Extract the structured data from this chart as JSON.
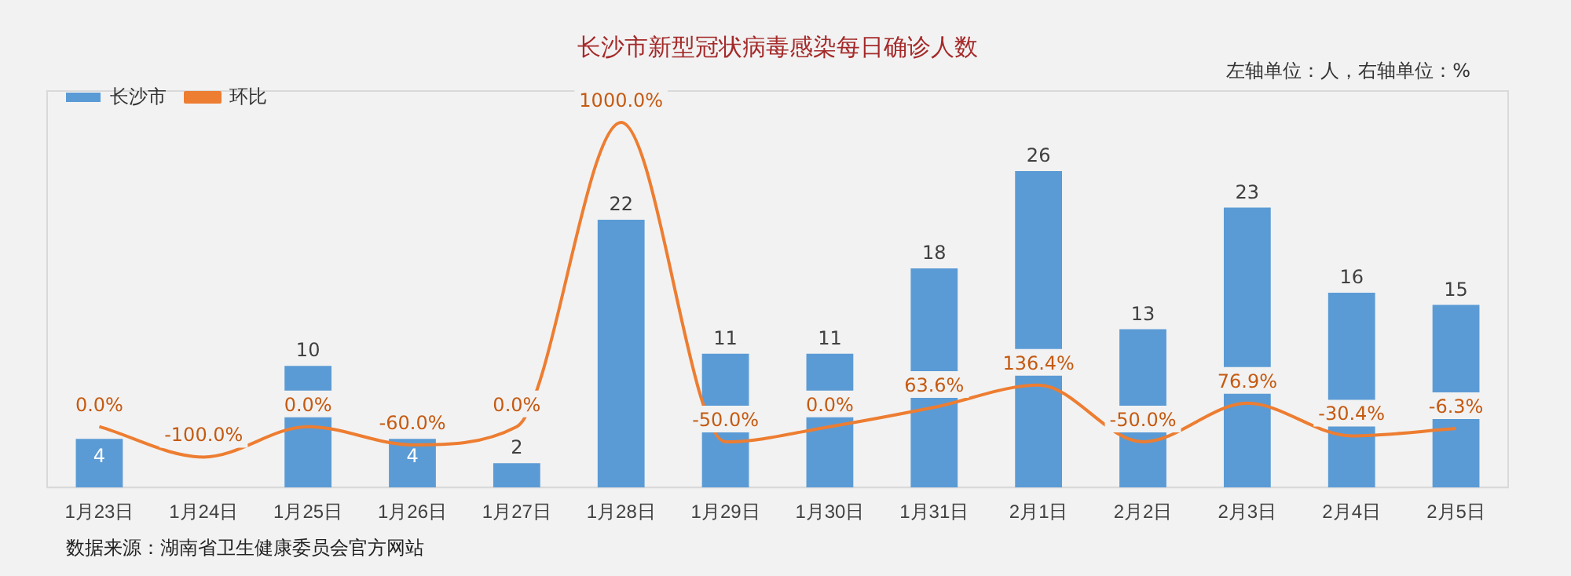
{
  "chart_data": {
    "type": "bar",
    "title": "长沙市新型冠状病毒感染每日确诊人数",
    "categories": [
      "1月23日",
      "1月24日",
      "1月25日",
      "1月26日",
      "1月27日",
      "1月28日",
      "1月29日",
      "1月30日",
      "1月31日",
      "2月1日",
      "2月2日",
      "2月3日",
      "2月4日",
      "2月5日"
    ],
    "series": [
      {
        "name": "长沙市",
        "color": "#5b9bd5",
        "values": [
          4,
          0,
          10,
          4,
          2,
          22,
          11,
          11,
          18,
          26,
          13,
          23,
          16,
          15
        ],
        "value_labels": [
          "4",
          null,
          "10",
          "4",
          "2",
          "22",
          "11",
          "11",
          "18",
          "26",
          "13",
          "23",
          "16",
          "15"
        ]
      },
      {
        "name": "环比",
        "type": "line",
        "axis": "y2",
        "color": "#ed7d31",
        "values": [
          0.0,
          -100.0,
          0.0,
          -60.0,
          0.0,
          1000.0,
          -50.0,
          0.0,
          63.6,
          136.4,
          -50.0,
          76.9,
          -30.4,
          -6.3
        ],
        "value_labels": [
          "0.0%",
          "-100.0%",
          "0.0%",
          "-60.0%",
          "0.0%",
          "1000.0%",
          "-50.0%",
          "0.0%",
          "63.6%",
          "136.4%",
          "-50.0%",
          "76.9%",
          "-30.4%",
          "-6.3%"
        ]
      }
    ],
    "legend": "top left",
    "grid": false,
    "marker": "none",
    "tick_labels": "x",
    "annotations": [
      "左轴单位：人，右轴单位：%",
      "数据来源：湖南省卫生健康委员会官方网站"
    ]
  }
}
